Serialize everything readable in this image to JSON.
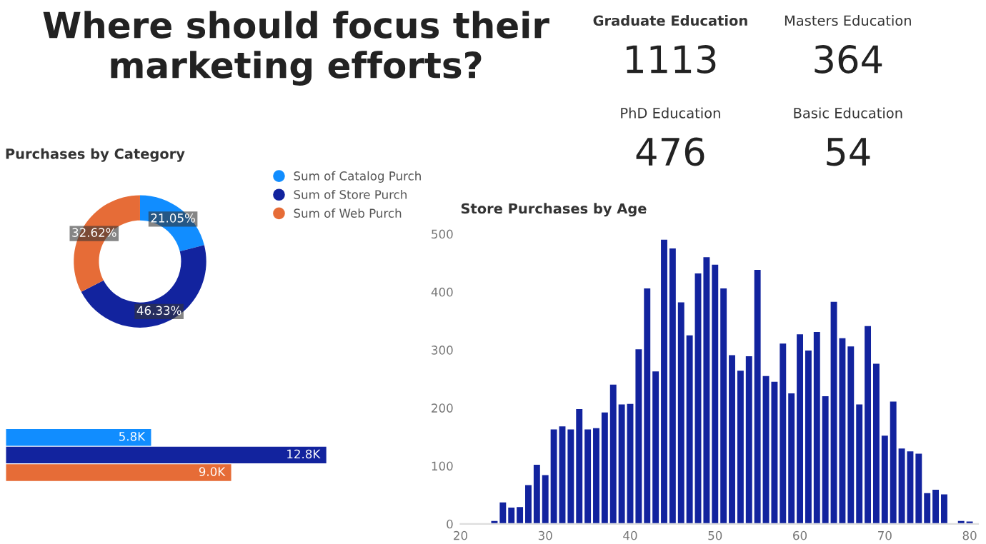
{
  "chart_data": [
    {
      "type": "other",
      "title": "Where should focus their marketing efforts?",
      "annotations": [
        "Graduate Education",
        "1113",
        "Masters Education",
        "364",
        "PhD Education",
        "476",
        "Basic Education",
        "54"
      ]
    },
    {
      "type": "donut",
      "title": "Purchases by Category",
      "categories": [
        "Sum of Catalog Purch",
        "Sum of Store Purch",
        "Sum of Web Purch"
      ],
      "values": [
        21.05,
        46.33,
        32.62
      ],
      "value_labels": [
        "21.05%",
        "46.33%",
        "32.62%"
      ],
      "colors": [
        "#118dff",
        "#12239e",
        "#e66c37"
      ],
      "legend": "top right"
    },
    {
      "type": "bar",
      "orientation": "horizontal",
      "categories": [
        null,
        null,
        null
      ],
      "values": [
        5800,
        12800,
        9000
      ],
      "value_labels": [
        "5.8K",
        "12.8K",
        "9.0K"
      ],
      "colors": [
        "#118dff",
        "#12239e",
        "#e66c37"
      ],
      "xlim": [
        0,
        13000
      ],
      "tick_labels": false
    },
    {
      "type": "bar",
      "title": "Store Purchases by Age",
      "color": "#12239e",
      "x": [
        24,
        25,
        26,
        27,
        28,
        29,
        30,
        31,
        32,
        33,
        34,
        35,
        36,
        37,
        38,
        39,
        40,
        41,
        42,
        43,
        44,
        45,
        46,
        47,
        48,
        49,
        50,
        51,
        52,
        53,
        54,
        55,
        56,
        57,
        58,
        59,
        60,
        61,
        62,
        63,
        64,
        65,
        66,
        67,
        68,
        69,
        70,
        71,
        72,
        73,
        74,
        75,
        76,
        77,
        79,
        80
      ],
      "values": [
        5,
        37,
        28,
        29,
        67,
        102,
        84,
        163,
        168,
        163,
        198,
        163,
        165,
        192,
        240,
        206,
        207,
        301,
        406,
        263,
        490,
        475,
        382,
        325,
        432,
        460,
        447,
        406,
        291,
        264,
        289,
        438,
        255,
        245,
        311,
        225,
        327,
        299,
        331,
        220,
        383,
        320,
        306,
        206,
        341,
        276,
        152,
        211,
        130,
        125,
        121,
        53,
        59,
        51,
        5,
        4
      ],
      "xlim": [
        20,
        81
      ],
      "xticks": [
        20,
        30,
        40,
        50,
        60,
        70,
        80
      ],
      "ylim": [
        0,
        500
      ],
      "yticks": [
        0,
        100,
        200,
        300,
        400,
        500
      ],
      "grid": false
    }
  ]
}
